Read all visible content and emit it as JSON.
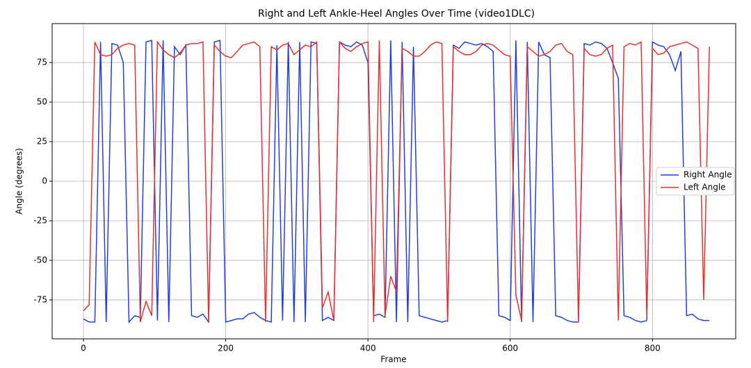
{
  "chart_data": {
    "type": "line",
    "title": "Right and Left Ankle-Heel Angles Over Time (video1DLC)",
    "x_label": "Frame",
    "y_label": "Angle (degrees)",
    "xlim": [
      -44,
      917
    ],
    "ylim": [
      -99.6,
      99.6
    ],
    "xticks": [
      0,
      200,
      400,
      600,
      800
    ],
    "yticks": [
      -75,
      -50,
      -25,
      0,
      25,
      50,
      75
    ],
    "grid": true,
    "legend": "center right",
    "x": [
      0,
      8,
      16,
      24,
      32,
      40,
      48,
      56,
      64,
      72,
      80,
      88,
      96,
      104,
      112,
      120,
      128,
      136,
      144,
      152,
      160,
      168,
      176,
      184,
      192,
      200,
      208,
      216,
      224,
      232,
      240,
      248,
      256,
      264,
      272,
      280,
      288,
      296,
      304,
      312,
      320,
      328,
      336,
      344,
      352,
      360,
      368,
      376,
      384,
      392,
      400,
      408,
      416,
      424,
      432,
      440,
      448,
      456,
      464,
      472,
      480,
      488,
      496,
      504,
      512,
      520,
      528,
      536,
      544,
      552,
      560,
      568,
      576,
      584,
      592,
      600,
      608,
      616,
      624,
      632,
      640,
      648,
      656,
      664,
      672,
      680,
      688,
      696,
      704,
      712,
      720,
      728,
      736,
      744,
      752,
      760,
      768,
      776,
      784,
      792,
      800,
      808,
      816,
      824,
      832,
      840,
      848,
      856,
      864,
      872,
      880
    ],
    "series": [
      {
        "name": "Right Angle",
        "color": "#1f3fdc",
        "values": [
          -87,
          -89,
          -89,
          88,
          -89,
          87,
          86,
          75,
          -89,
          -85,
          -86,
          88,
          89,
          -88,
          89,
          -89,
          85,
          80,
          86,
          -85,
          -86,
          -84,
          -89,
          88,
          89,
          -89,
          -88,
          -87,
          -87,
          -84,
          -83,
          -86,
          -88,
          -89,
          86,
          -88,
          88,
          -89,
          88,
          -89,
          88,
          87,
          -88,
          -86,
          -88,
          88,
          86,
          85,
          88,
          86,
          75,
          -85,
          -84,
          -86,
          89,
          -89,
          88,
          -89,
          85,
          -85,
          -86,
          -87,
          -88,
          -89,
          -88,
          86,
          84,
          88,
          87,
          86,
          87,
          85,
          82,
          -85,
          -86,
          -88,
          89,
          -89,
          88,
          -89,
          88,
          80,
          78,
          -85,
          -86,
          -88,
          -89,
          -89,
          87,
          86,
          88,
          87,
          84,
          75,
          65,
          -85,
          -86,
          -88,
          -89,
          -88,
          88,
          86,
          85,
          80,
          70,
          82,
          -85,
          -84,
          -87,
          -88,
          -88
        ]
      },
      {
        "name": "Left Angle",
        "color": "#e8302a",
        "values": [
          -82,
          -78,
          88,
          80,
          79,
          80,
          84,
          86,
          87,
          86,
          -89,
          -76,
          -85,
          88,
          83,
          80,
          78,
          81,
          86,
          87,
          87,
          88,
          -89,
          86,
          82,
          79,
          78,
          82,
          86,
          87,
          88,
          85,
          -89,
          85,
          83,
          86,
          87,
          80,
          83,
          86,
          85,
          88,
          -80,
          -70,
          -88,
          88,
          84,
          82,
          85,
          87,
          88,
          -89,
          89,
          -85,
          -60,
          -70,
          84,
          82,
          79,
          79,
          82,
          86,
          88,
          87,
          -89,
          85,
          82,
          80,
          80,
          82,
          86,
          87,
          86,
          83,
          80,
          79,
          -72,
          -88,
          85,
          82,
          79,
          80,
          82,
          86,
          87,
          82,
          80,
          -89,
          84,
          80,
          79,
          80,
          84,
          86,
          -88,
          85,
          87,
          86,
          88,
          -85,
          84,
          80,
          81,
          85,
          86,
          87,
          88,
          86,
          84,
          -75,
          85
        ]
      }
    ]
  }
}
